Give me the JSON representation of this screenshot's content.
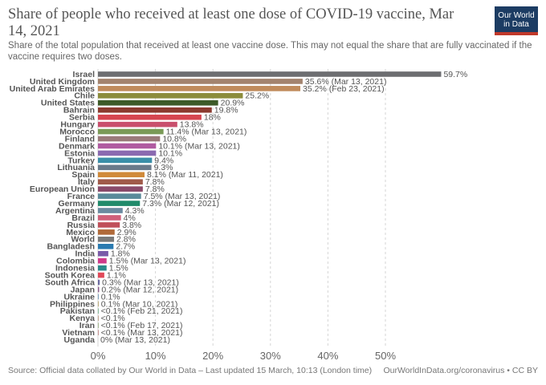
{
  "header": {
    "title": "Share of people who received at least one dose of COVID-19 vaccine, Mar 14, 2021",
    "subtitle": "Share of the total population that received at least one vaccine dose. This may not equal the share that are fully vaccinated if the vaccine requires two doses.",
    "logo_line1": "Our World",
    "logo_line2": "in Data"
  },
  "footer": {
    "source": "Source: Official data collated by Our World in Data – Last updated 15 March, 10:13 (London time)",
    "url": "OurWorldInData.org/coronavirus • CC BY"
  },
  "chart_data": {
    "type": "bar",
    "orientation": "horizontal",
    "title": "Share of people who received at least one dose of COVID-19 vaccine, Mar 14, 2021",
    "xlabel": "",
    "ylabel": "",
    "xlim": [
      0,
      60
    ],
    "xticks": [
      0,
      10,
      20,
      30,
      40,
      50
    ],
    "xtick_labels": [
      "0%",
      "10%",
      "20%",
      "30%",
      "40%",
      "50%"
    ],
    "grid": true,
    "series": [
      {
        "name": "Israel",
        "value": 59.7,
        "label": "59.7%",
        "color": "#6d6e71"
      },
      {
        "name": "United Kingdom",
        "value": 35.6,
        "label": "35.6% (Mar 13, 2021)",
        "color": "#a2836e"
      },
      {
        "name": "United Arab Emirates",
        "value": 35.2,
        "label": "35.2% (Feb 23, 2021)",
        "color": "#c08b5c"
      },
      {
        "name": "Chile",
        "value": 25.2,
        "label": "25.2%",
        "color": "#8c8c3c"
      },
      {
        "name": "United States",
        "value": 20.9,
        "label": "20.9%",
        "color": "#3c5a28"
      },
      {
        "name": "Bahrain",
        "value": 19.8,
        "label": "19.8%",
        "color": "#8b3a2f"
      },
      {
        "name": "Serbia",
        "value": 18,
        "label": "18%",
        "color": "#d64550"
      },
      {
        "name": "Hungary",
        "value": 13.8,
        "label": "13.8%",
        "color": "#c94f6d"
      },
      {
        "name": "Morocco",
        "value": 11.4,
        "label": "11.4% (Mar 13, 2021)",
        "color": "#7a9a57"
      },
      {
        "name": "Finland",
        "value": 10.8,
        "label": "10.8%",
        "color": "#9a7a7a"
      },
      {
        "name": "Denmark",
        "value": 10.1,
        "label": "10.1% (Mar 13, 2021)",
        "color": "#b05aa0"
      },
      {
        "name": "Estonia",
        "value": 10.1,
        "label": "10.1%",
        "color": "#8a6ab0"
      },
      {
        "name": "Turkey",
        "value": 9.4,
        "label": "9.4%",
        "color": "#3a8fa8"
      },
      {
        "name": "Lithuania",
        "value": 9.3,
        "label": "9.3%",
        "color": "#6a7a8a"
      },
      {
        "name": "Spain",
        "value": 8.1,
        "label": "8.1% (Mar 11, 2021)",
        "color": "#d08a3a"
      },
      {
        "name": "Italy",
        "value": 7.8,
        "label": "7.8%",
        "color": "#a05a4a"
      },
      {
        "name": "European Union",
        "value": 7.8,
        "label": "7.8%",
        "color": "#8a4a6a"
      },
      {
        "name": "France",
        "value": 7.5,
        "label": "7.5% (Mar 13, 2021)",
        "color": "#5a8a9a"
      },
      {
        "name": "Germany",
        "value": 7.3,
        "label": "7.3% (Mar 12, 2021)",
        "color": "#1f8a6a"
      },
      {
        "name": "Argentina",
        "value": 4.3,
        "label": "4.3%",
        "color": "#6a8aa0"
      },
      {
        "name": "Brazil",
        "value": 4,
        "label": "4%",
        "color": "#d0607a"
      },
      {
        "name": "Russia",
        "value": 3.8,
        "label": "3.8%",
        "color": "#c0505a"
      },
      {
        "name": "Mexico",
        "value": 2.9,
        "label": "2.9%",
        "color": "#b06a3a"
      },
      {
        "name": "World",
        "value": 2.8,
        "label": "2.8%",
        "color": "#7a7a7a"
      },
      {
        "name": "Bangladesh",
        "value": 2.7,
        "label": "2.7%",
        "color": "#2a7ab0"
      },
      {
        "name": "India",
        "value": 1.8,
        "label": "1.8%",
        "color": "#7a5aa8"
      },
      {
        "name": "Colombia",
        "value": 1.5,
        "label": "1.5% (Mar 13, 2021)",
        "color": "#d03a8a"
      },
      {
        "name": "Indonesia",
        "value": 1.5,
        "label": "1.5%",
        "color": "#2a8a8a"
      },
      {
        "name": "South Korea",
        "value": 1.1,
        "label": "1.1%",
        "color": "#e04a5a"
      },
      {
        "name": "South Africa",
        "value": 0.3,
        "label": "0.3% (Mar 13, 2021)",
        "color": "#6a6aa0"
      },
      {
        "name": "Japan",
        "value": 0.2,
        "label": "0.2% (Mar 12, 2021)",
        "color": "#8a5a8a"
      },
      {
        "name": "Ukraine",
        "value": 0.1,
        "label": "0.1%",
        "color": "#4a7aa0"
      },
      {
        "name": "Philippines",
        "value": 0.1,
        "label": "0.1% (Mar 10, 2021)",
        "color": "#a08a4a"
      },
      {
        "name": "Pakistan",
        "value": 0.05,
        "label": "<0.1% (Feb 21, 2021)",
        "color": "#3a8a5a"
      },
      {
        "name": "Kenya",
        "value": 0.05,
        "label": "<0.1%",
        "color": "#9a6a4a"
      },
      {
        "name": "Iran",
        "value": 0.05,
        "label": "<0.1% (Feb 17, 2021)",
        "color": "#6a8a4a"
      },
      {
        "name": "Vietnam",
        "value": 0.05,
        "label": "<0.1% (Mar 13, 2021)",
        "color": "#a04a4a"
      },
      {
        "name": "Uganda",
        "value": 0,
        "label": "0% (Mar 13, 2021)",
        "color": "#5a5a8a"
      }
    ]
  }
}
